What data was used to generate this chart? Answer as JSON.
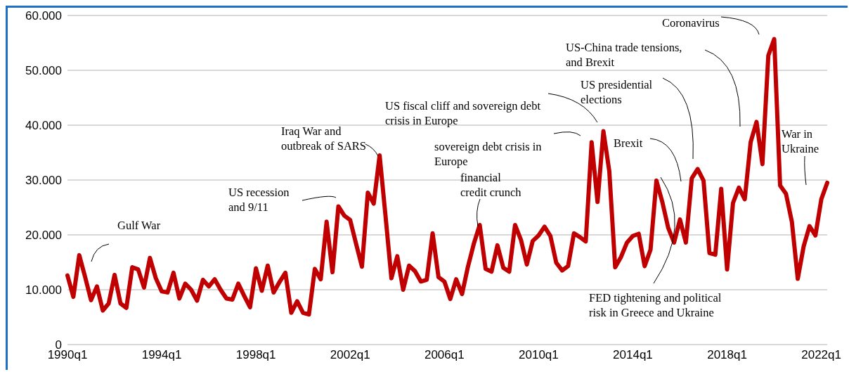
{
  "chart_data": {
    "type": "line",
    "categories": [
      "1990q1",
      null,
      null,
      null,
      null,
      null,
      null,
      null,
      null,
      null,
      null,
      null,
      null,
      null,
      null,
      null,
      "1994q1",
      null,
      null,
      null,
      null,
      null,
      null,
      null,
      null,
      null,
      null,
      null,
      null,
      null,
      null,
      null,
      "1998q1",
      null,
      null,
      null,
      null,
      null,
      null,
      null,
      null,
      null,
      null,
      null,
      null,
      null,
      null,
      null,
      "2002q1",
      null,
      null,
      null,
      null,
      null,
      null,
      null,
      null,
      null,
      null,
      null,
      null,
      null,
      null,
      null,
      "2006q1",
      null,
      null,
      null,
      null,
      null,
      null,
      null,
      null,
      null,
      null,
      null,
      null,
      null,
      null,
      null,
      "2010q1",
      null,
      null,
      null,
      null,
      null,
      null,
      null,
      null,
      null,
      null,
      null,
      null,
      null,
      null,
      null,
      "2014q1",
      null,
      null,
      null,
      null,
      null,
      null,
      null,
      null,
      null,
      null,
      null,
      null,
      null,
      null,
      null,
      "2018q1",
      null,
      null,
      null,
      null,
      null,
      null,
      null,
      null,
      null,
      null,
      null,
      null,
      null,
      null,
      null,
      "2022q1",
      null
    ],
    "values": [
      12600,
      8700,
      16300,
      12300,
      8100,
      10600,
      6200,
      7500,
      12700,
      7500,
      6700,
      14100,
      13700,
      10400,
      15800,
      12100,
      9700,
      9500,
      13100,
      8400,
      11100,
      10000,
      8000,
      11800,
      10600,
      11900,
      10000,
      8400,
      8200,
      11100,
      8900,
      6800,
      13900,
      9800,
      14400,
      9500,
      11400,
      13100,
      5800,
      7900,
      5800,
      5500,
      13800,
      11900,
      22400,
      13200,
      25200,
      23500,
      22700,
      18400,
      14200,
      27700,
      25700,
      34500,
      23500,
      12100,
      16100,
      10000,
      14400,
      13400,
      11500,
      11800,
      20300,
      12300,
      11500,
      8300,
      11900,
      9200,
      14200,
      18400,
      21800,
      13800,
      13300,
      18100,
      14000,
      13300,
      21800,
      19100,
      14600,
      18900,
      19900,
      21500,
      19800,
      14900,
      13500,
      14300,
      20300,
      19600,
      18800,
      36900,
      26000,
      38900,
      31600,
      14100,
      16000,
      18600,
      19800,
      20200,
      14300,
      17300,
      29900,
      26000,
      21300,
      18600,
      22800,
      18600,
      30300,
      32000,
      29900,
      16700,
      16400,
      28400,
      13700,
      25800,
      28600,
      26500,
      36900,
      40600,
      32900,
      52700,
      55700,
      29000,
      27500,
      22400,
      12000,
      17900,
      21600,
      19900,
      26500,
      29500
    ],
    "color": "#c00000",
    "line_style": "solid",
    "ylim": [
      0,
      60000
    ],
    "yticks": [
      0,
      {
        "value": 10000,
        "label": "10.000"
      },
      {
        "value": 20000,
        "label": "20.000"
      },
      {
        "value": 30000,
        "label": "30.000"
      },
      {
        "value": 40000,
        "label": "40.000"
      },
      {
        "value": 50000,
        "label": "50.000"
      },
      {
        "value": 60000,
        "label": "60.000"
      }
    ],
    "grid": "y",
    "annotations": [
      "Gulf War",
      "US recession\nand 9/11",
      "Iraq War and\noutbreak of SARS",
      "US fiscal cliff and sovereign debt\ncrisis in Europe",
      "sovereign debt crisis in\nEurope",
      "financial\ncredit crunch",
      "Brexit",
      "US presidential\nelections",
      "US-China trade tensions,\nand Brexit",
      "Coronavirus",
      "War in\nUkraine",
      "FED tightening and political\nrisk in Greece and Ukraine"
    ]
  }
}
